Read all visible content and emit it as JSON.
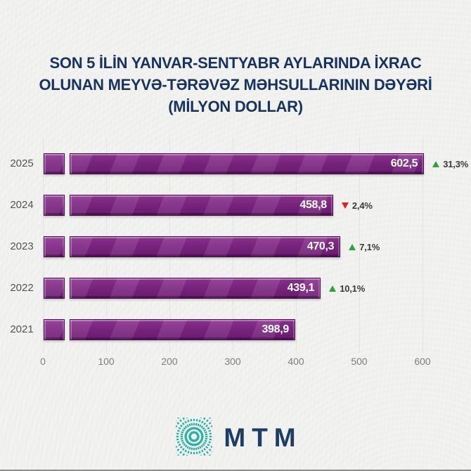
{
  "page": {
    "background_color": "#f2f2f0",
    "bottom_line_color": "#8e8e8e"
  },
  "title": {
    "line1": "SON 5 İLİN YANVAR-SENTYABR AYLARINDA İXRAC",
    "line2": "OLUNAN MEYVƏ-TƏRƏVƏZ MƏHSULLARININ DƏYƏRİ",
    "line3": "(MİLYON DOLLAR)",
    "color": "#17345f"
  },
  "chart_data": {
    "type": "bar",
    "orientation": "horizontal",
    "title": "SON 5 İLİN YANVAR-SENTYABR AYLARINDA İXRAC OLUNAN MEYVƏ-TƏRƏVƏZ MƏHSULLARININ DƏYƏRİ (MİLYON DOLLAR)",
    "unit": "milyon dollar",
    "categories": [
      "2025",
      "2024",
      "2023",
      "2022",
      "2021"
    ],
    "values": [
      602.5,
      458.8,
      470.3,
      439.1,
      398.9
    ],
    "value_labels": [
      "602,5",
      "458,8",
      "470,3",
      "439,1",
      "398,9"
    ],
    "changes": [
      {
        "direction": "up",
        "label": "31,3%"
      },
      {
        "direction": "down",
        "label": "2,4%"
      },
      {
        "direction": "up",
        "label": "7,1%"
      },
      {
        "direction": "up",
        "label": "10,1%"
      },
      {
        "direction": "none",
        "label": ""
      }
    ],
    "x_ticks": [
      0,
      100,
      200,
      300,
      400,
      500,
      600
    ],
    "xlim": [
      0,
      660
    ],
    "grid": true,
    "legend": false,
    "bar_color": "#7c2581",
    "up_color": "#2fa33a",
    "down_color": "#e2231a"
  },
  "logo": {
    "text": "MTM",
    "icon_color": "#2bb0a9",
    "text_color": "#1c3e64"
  }
}
